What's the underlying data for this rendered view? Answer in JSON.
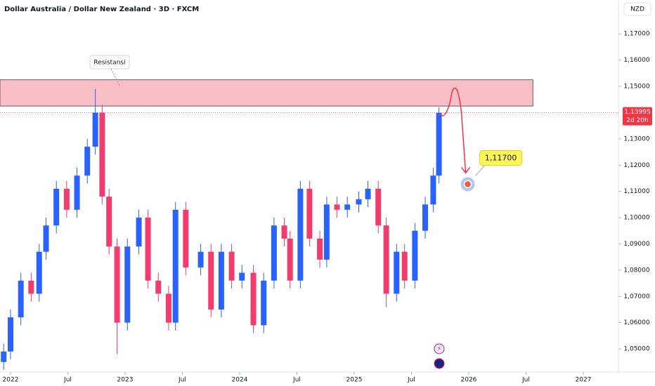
{
  "chart_data": {
    "type": "candlestick",
    "title": "Dollar Australia / Dollar New Zealand · 3D · FXCM",
    "currency": "NZD",
    "up_color": "#2962ff",
    "down_color": "#f23c6e",
    "grid": false,
    "x": [
      2021.94,
      2022.0,
      2022.09,
      2022.18,
      2022.25,
      2022.31,
      2022.4,
      2022.49,
      2022.58,
      2022.67,
      2022.74,
      2022.8,
      2022.86,
      2022.93,
      2023.02,
      2023.12,
      2023.2,
      2023.29,
      2023.38,
      2023.44,
      2023.53,
      2023.66,
      2023.75,
      2023.84,
      2023.93,
      2024.02,
      2024.12,
      2024.21,
      2024.3,
      2024.39,
      2024.44,
      2024.53,
      2024.61,
      2024.7,
      2024.76,
      2024.85,
      2024.94,
      2025.04,
      2025.12,
      2025.21,
      2025.28,
      2025.37,
      2025.44,
      2025.53,
      2025.62,
      2025.69,
      2025.74
    ],
    "open": [
      1.045,
      1.049,
      1.062,
      1.076,
      1.071,
      1.087,
      1.097,
      1.111,
      1.103,
      1.116,
      1.127,
      1.14,
      1.108,
      1.089,
      1.06,
      1.089,
      1.1,
      1.076,
      1.071,
      1.06,
      1.103,
      1.081,
      1.087,
      1.065,
      1.087,
      1.076,
      1.079,
      1.059,
      1.076,
      1.097,
      1.092,
      1.076,
      1.111,
      1.092,
      1.084,
      1.105,
      1.103,
      1.105,
      1.107,
      1.111,
      1.097,
      1.071,
      1.087,
      1.076,
      1.095,
      1.105,
      1.116
    ],
    "high": [
      1.052,
      1.065,
      1.079,
      1.079,
      1.09,
      1.1,
      1.114,
      1.114,
      1.119,
      1.13,
      1.149,
      1.143,
      1.111,
      1.092,
      1.092,
      1.103,
      1.103,
      1.079,
      1.074,
      1.106,
      1.106,
      1.09,
      1.09,
      1.09,
      1.09,
      1.082,
      1.082,
      1.079,
      1.1,
      1.1,
      1.095,
      1.114,
      1.114,
      1.095,
      1.108,
      1.108,
      1.108,
      1.11,
      1.114,
      1.114,
      1.1,
      1.09,
      1.09,
      1.098,
      1.108,
      1.119,
      1.142
    ],
    "low": [
      1.042,
      1.046,
      1.059,
      1.068,
      1.068,
      1.084,
      1.094,
      1.1,
      1.1,
      1.113,
      1.124,
      1.105,
      1.086,
      1.048,
      1.057,
      1.086,
      1.073,
      1.068,
      1.057,
      1.057,
      1.078,
      1.078,
      1.062,
      1.062,
      1.073,
      1.073,
      1.056,
      1.056,
      1.073,
      1.089,
      1.073,
      1.073,
      1.089,
      1.081,
      1.081,
      1.1,
      1.1,
      1.102,
      1.104,
      1.094,
      1.066,
      1.068,
      1.073,
      1.073,
      1.092,
      1.102,
      1.113
    ],
    "close": [
      1.049,
      1.062,
      1.076,
      1.071,
      1.087,
      1.097,
      1.111,
      1.103,
      1.116,
      1.127,
      1.14,
      1.108,
      1.089,
      1.06,
      1.089,
      1.1,
      1.076,
      1.071,
      1.06,
      1.103,
      1.081,
      1.087,
      1.065,
      1.087,
      1.076,
      1.079,
      1.059,
      1.076,
      1.097,
      1.092,
      1.076,
      1.111,
      1.092,
      1.084,
      1.105,
      1.103,
      1.105,
      1.107,
      1.111,
      1.097,
      1.071,
      1.087,
      1.076,
      1.095,
      1.105,
      1.116,
      1.13995
    ],
    "xlim": [
      2021.908,
      2027.307
    ],
    "xticks": [
      {
        "value": 2022,
        "label": "2022"
      },
      {
        "value": 2022.5,
        "label": "Jul"
      },
      {
        "value": 2023,
        "label": "2023"
      },
      {
        "value": 2023.5,
        "label": "Jul"
      },
      {
        "value": 2024,
        "label": "2024"
      },
      {
        "value": 2024.5,
        "label": "Jul"
      },
      {
        "value": 2025,
        "label": "2025"
      },
      {
        "value": 2025.5,
        "label": "Jul"
      },
      {
        "value": 2026,
        "label": "2026"
      },
      {
        "value": 2026.5,
        "label": "Jul"
      },
      {
        "value": 2027,
        "label": "2027"
      }
    ],
    "ylim": [
      1.0412,
      1.1829
    ],
    "yticks": [
      {
        "value": 1.05,
        "label": "1,05000"
      },
      {
        "value": 1.06,
        "label": "1,06000"
      },
      {
        "value": 1.07,
        "label": "1,07000"
      },
      {
        "value": 1.08,
        "label": "1,08000"
      },
      {
        "value": 1.09,
        "label": "1,09000"
      },
      {
        "value": 1.1,
        "label": "1,10000"
      },
      {
        "value": 1.11,
        "label": "1,11000"
      },
      {
        "value": 1.12,
        "label": "1,12000"
      },
      {
        "value": 1.13,
        "label": "1,13000"
      },
      {
        "value": 1.15,
        "label": "1,15000"
      },
      {
        "value": 1.16,
        "label": "1,16000"
      },
      {
        "value": 1.17,
        "label": "1,17000"
      }
    ],
    "last_price": {
      "value": 1.13995,
      "label": "1,13995"
    },
    "countdown": "2d 20h",
    "resistance": {
      "label": "Resistansi",
      "low": 1.1425,
      "high": 1.1525,
      "x_end": 2026.56
    },
    "target": {
      "value": 1.117,
      "label": "1,11700"
    }
  }
}
